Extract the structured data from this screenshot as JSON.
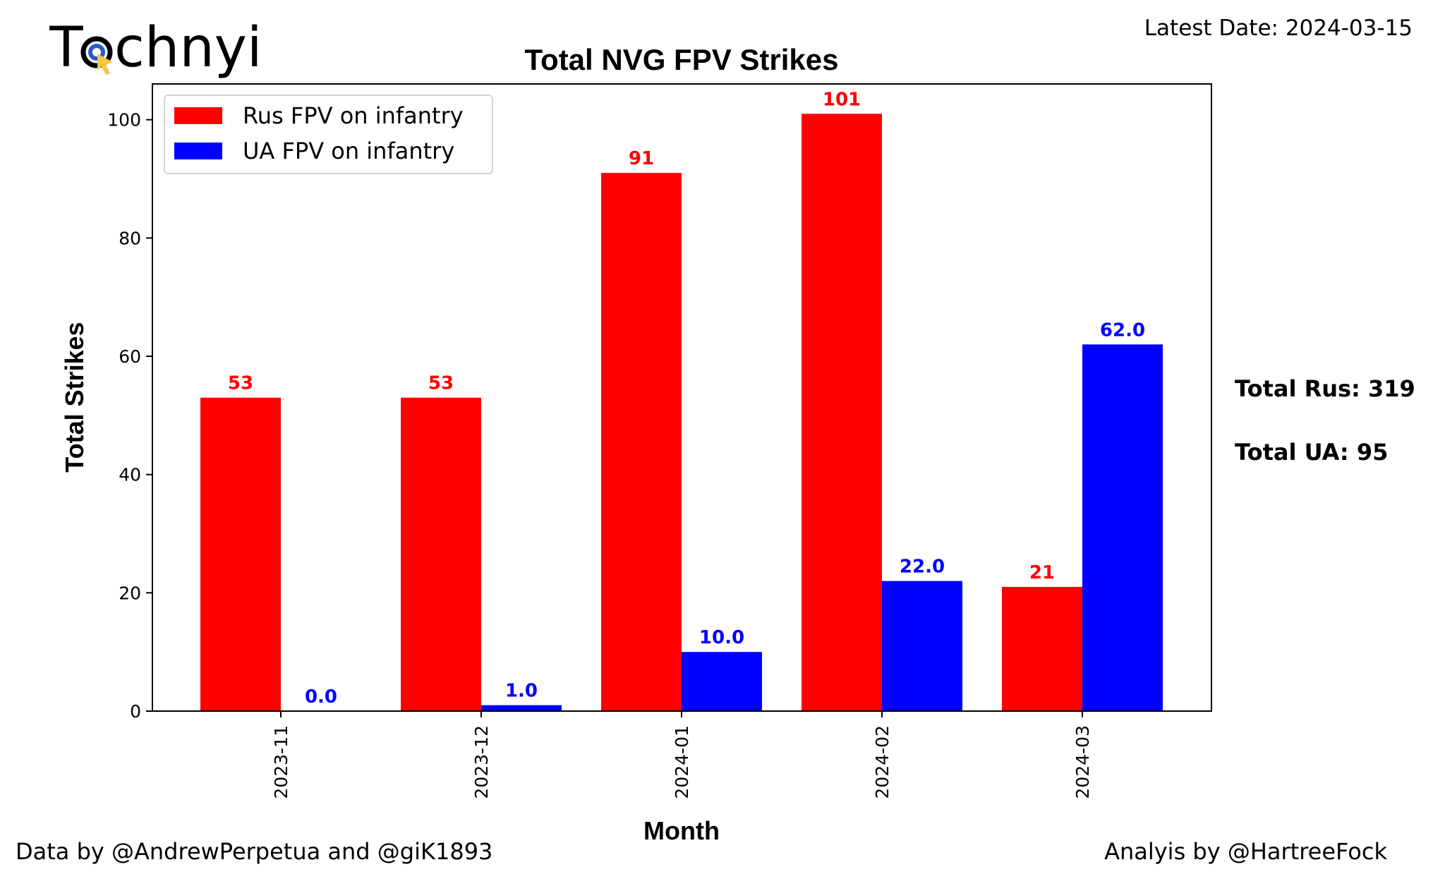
{
  "logo": {
    "text": "Technyi"
  },
  "latest_date": "Latest Date: 2024-03-15",
  "totals": {
    "rus": "Total Rus: 319",
    "ua": "Total UA: 95"
  },
  "footer": {
    "left": "Data by @AndrewPerpetua and @giK1893",
    "right": "Analyis by @HartreeFock"
  },
  "chart_data": {
    "type": "bar",
    "title": "Total NVG FPV Strikes",
    "xlabel": "Month",
    "ylabel": "Total Strikes",
    "categories": [
      "2023-11",
      "2023-12",
      "2024-01",
      "2024-02",
      "2024-03"
    ],
    "series": [
      {
        "name": "Rus FPV on infantry",
        "color": "#ff0000",
        "values": [
          53,
          53,
          91,
          101,
          21
        ],
        "labels": [
          "53",
          "53",
          "91",
          "101",
          "21"
        ]
      },
      {
        "name": "UA FPV on infantry",
        "color": "#0000ff",
        "values": [
          0,
          1,
          10,
          22,
          62
        ],
        "labels": [
          "0.0",
          "1.0",
          "10.0",
          "22.0",
          "62.0"
        ]
      }
    ],
    "ylim": [
      0,
      106
    ],
    "yticks": [
      0,
      20,
      40,
      60,
      80,
      100
    ],
    "grid": false,
    "legend": "top-left"
  }
}
